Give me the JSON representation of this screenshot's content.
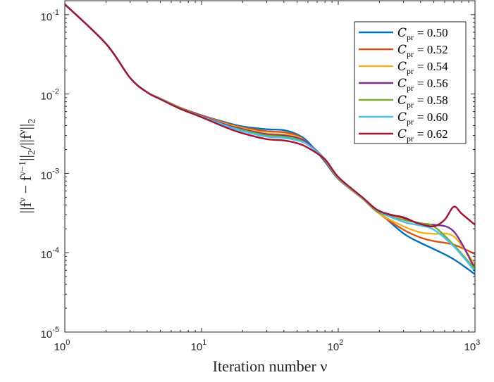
{
  "chart_data": {
    "type": "line",
    "xscale": "log",
    "yscale": "log",
    "xlim": [
      1,
      1000
    ],
    "ylim": [
      1e-05,
      0.15
    ],
    "xlabel": "Iteration number ν",
    "ylabel": "||f^ν − f^(ν−1)||_2/||f^ν||_2",
    "ylabel_parts": {
      "a": "||f",
      "a_sup": "ν",
      "b": " − f",
      "b_sup": "ν−1",
      "c": "||",
      "c_sub": "2",
      "d": "/||f",
      "d_sup": "ν",
      "e": "||",
      "e_sub": "2"
    },
    "x_ticks": [
      {
        "value": 1,
        "base": "10",
        "exp": "0"
      },
      {
        "value": 10,
        "base": "10",
        "exp": "1"
      },
      {
        "value": 100,
        "base": "10",
        "exp": "2"
      },
      {
        "value": 1000,
        "base": "10",
        "exp": "3"
      }
    ],
    "y_ticks": [
      {
        "value": 1e-05,
        "base": "10",
        "exp": "-5"
      },
      {
        "value": 0.0001,
        "base": "10",
        "exp": "-4"
      },
      {
        "value": 0.001,
        "base": "10",
        "exp": "-3"
      },
      {
        "value": 0.01,
        "base": "10",
        "exp": "-2"
      },
      {
        "value": 0.1,
        "base": "10",
        "exp": "-1"
      }
    ],
    "grid": false,
    "legend_position": "top-right",
    "legend_symbol": "C",
    "legend_subscript": "pr",
    "series": [
      {
        "name": "0.50",
        "color": "#0072BD",
        "x": [
          1,
          2,
          3,
          4,
          5,
          7,
          10,
          15,
          20,
          30,
          40,
          50,
          60,
          80,
          100,
          150,
          200,
          300,
          400,
          500,
          700,
          1000
        ],
        "y": [
          0.135,
          0.043,
          0.016,
          0.0105,
          0.0088,
          0.0067,
          0.0054,
          0.0044,
          0.0039,
          0.0036,
          0.0035,
          0.0031,
          0.0025,
          0.0014,
          0.00085,
          0.00048,
          0.00032,
          0.000175,
          0.000133,
          0.000111,
          8.25e-05,
          5.35e-05
        ]
      },
      {
        "name": "0.52",
        "color": "#D95319",
        "x": [
          1,
          2,
          3,
          4,
          5,
          7,
          10,
          15,
          20,
          30,
          40,
          50,
          60,
          80,
          100,
          150,
          200,
          300,
          400,
          500,
          700,
          1000
        ],
        "y": [
          0.135,
          0.043,
          0.016,
          0.0105,
          0.0088,
          0.0067,
          0.0054,
          0.0043,
          0.0038,
          0.0034,
          0.0033,
          0.003,
          0.0024,
          0.00145,
          0.00086,
          0.00048,
          0.00031,
          0.000195,
          0.000155,
          0.00014,
          0.000126,
          9.65e-05
        ]
      },
      {
        "name": "0.54",
        "color": "#EDB120",
        "x": [
          1,
          2,
          3,
          4,
          5,
          7,
          10,
          15,
          20,
          30,
          40,
          50,
          60,
          80,
          100,
          150,
          200,
          300,
          400,
          500,
          700,
          1000
        ],
        "y": [
          0.135,
          0.043,
          0.016,
          0.0105,
          0.0088,
          0.0066,
          0.0053,
          0.0042,
          0.0037,
          0.0032,
          0.0031,
          0.0029,
          0.0024,
          0.00148,
          0.00087,
          0.00048,
          0.00031,
          0.000215,
          0.00018,
          0.000173,
          0.00016,
          7.05e-05
        ]
      },
      {
        "name": "0.56",
        "color": "#7E2F8E",
        "x": [
          1,
          2,
          3,
          4,
          5,
          7,
          10,
          15,
          20,
          30,
          40,
          50,
          60,
          80,
          100,
          150,
          200,
          300,
          400,
          500,
          700,
          1000
        ],
        "y": [
          0.135,
          0.043,
          0.016,
          0.0105,
          0.0087,
          0.0066,
          0.0053,
          0.0041,
          0.0036,
          0.0031,
          0.003,
          0.0028,
          0.0024,
          0.0015,
          0.00088,
          0.00049,
          0.00032,
          0.00028,
          0.000225,
          0.000225,
          0.000185,
          6.25e-05
        ]
      },
      {
        "name": "0.58",
        "color": "#77AC30",
        "x": [
          1,
          2,
          3,
          4,
          5,
          7,
          10,
          15,
          20,
          30,
          40,
          50,
          60,
          80,
          100,
          150,
          200,
          300,
          400,
          500,
          700,
          1000
        ],
        "y": [
          0.135,
          0.043,
          0.016,
          0.0105,
          0.0087,
          0.0066,
          0.0052,
          0.004,
          0.0035,
          0.003,
          0.0029,
          0.0027,
          0.0023,
          0.0015,
          0.00088,
          0.00049,
          0.00032,
          0.00026,
          0.000235,
          0.000215,
          0.000125,
          6.2e-05
        ]
      },
      {
        "name": "0.60",
        "color": "#4DBEEE",
        "x": [
          1,
          2,
          3,
          4,
          5,
          7,
          10,
          15,
          20,
          30,
          40,
          50,
          60,
          80,
          100,
          150,
          200,
          300,
          400,
          500,
          700,
          1000
        ],
        "y": [
          0.135,
          0.043,
          0.016,
          0.0105,
          0.0087,
          0.0065,
          0.0052,
          0.004,
          0.0034,
          0.0029,
          0.0028,
          0.0026,
          0.0023,
          0.0015,
          0.00089,
          0.00049,
          0.00033,
          0.000245,
          0.00022,
          0.000195,
          0.00012,
          5.85e-05
        ]
      },
      {
        "name": "0.62",
        "color": "#A2142F",
        "x": [
          1,
          2,
          3,
          4,
          5,
          7,
          10,
          15,
          20,
          30,
          40,
          50,
          60,
          80,
          100,
          150,
          200,
          300,
          400,
          500,
          600,
          700,
          800,
          1000
        ],
        "y": [
          0.135,
          0.043,
          0.016,
          0.0105,
          0.0086,
          0.0065,
          0.0051,
          0.0038,
          0.0032,
          0.0027,
          0.0026,
          0.0024,
          0.0021,
          0.0015,
          0.0009,
          0.0005,
          0.000335,
          0.000275,
          0.00023,
          0.000215,
          0.00026,
          0.00038,
          0.00031,
          0.000225
        ]
      }
    ]
  }
}
